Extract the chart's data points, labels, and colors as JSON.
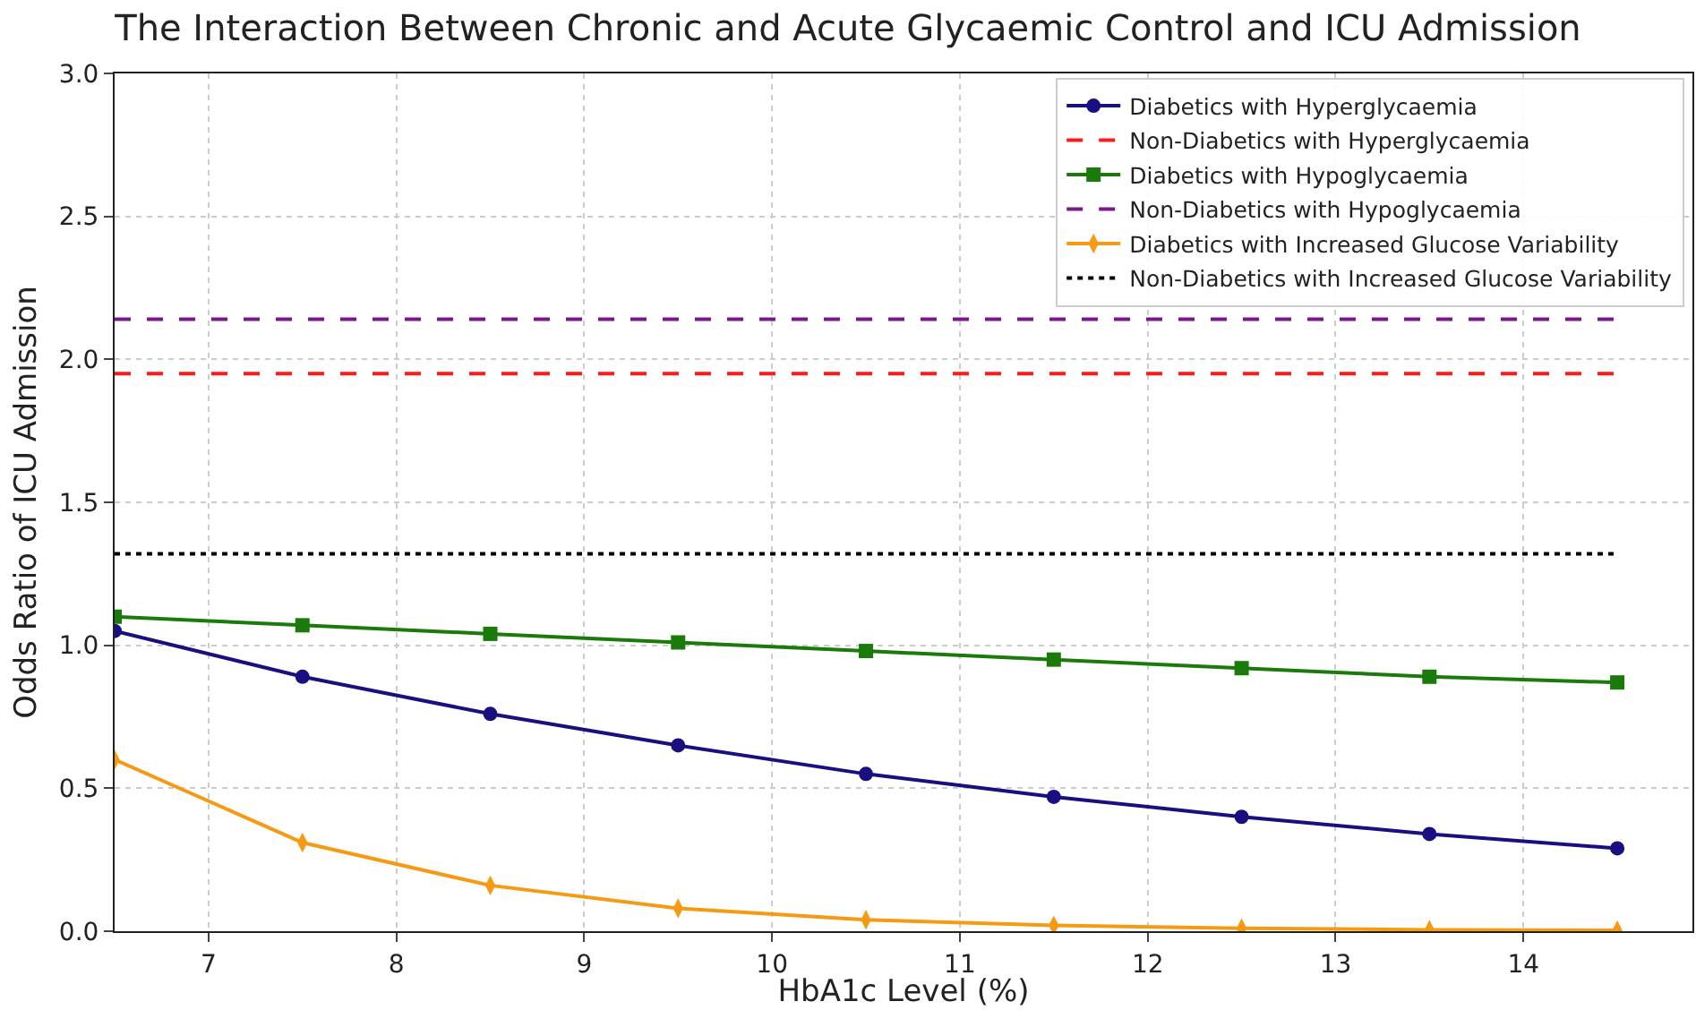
{
  "chart_data": {
    "type": "line",
    "title": "The Interaction Between Chronic and Acute Glycaemic Control and ICU Admission",
    "xlabel": "HbA1c Level (%)",
    "ylabel": "Odds Ratio of ICU Admission",
    "x": [
      6.5,
      7.5,
      8.5,
      9.5,
      10.5,
      11.5,
      12.5,
      13.5,
      14.5
    ],
    "series": [
      {
        "name": "Diabetics with Hyperglycaemia",
        "color": "#1a0f80",
        "marker": "circle",
        "line_style": "solid",
        "values": [
          1.05,
          0.89,
          0.76,
          0.65,
          0.55,
          0.47,
          0.4,
          0.34,
          0.29
        ]
      },
      {
        "name": "Non-Diabetics with Hyperglycaemia",
        "color": "#ff1a1a",
        "marker": "none",
        "line_style": "dashed",
        "values": [
          1.95,
          1.95,
          1.95,
          1.95,
          1.95,
          1.95,
          1.95,
          1.95,
          1.95
        ]
      },
      {
        "name": "Diabetics with Hypoglycaemia",
        "color": "#1a7a0a",
        "marker": "square",
        "line_style": "solid",
        "values": [
          1.1,
          1.07,
          1.04,
          1.01,
          0.98,
          0.95,
          0.92,
          0.89,
          0.87
        ]
      },
      {
        "name": "Non-Diabetics with Hypoglycaemia",
        "color": "#7a1a8a",
        "marker": "none",
        "line_style": "dashed",
        "values": [
          2.14,
          2.14,
          2.14,
          2.14,
          2.14,
          2.14,
          2.14,
          2.14,
          2.14
        ]
      },
      {
        "name": "Diabetics with Increased Glucose Variability",
        "color": "#f59a12",
        "marker": "diamond",
        "line_style": "solid",
        "values": [
          0.6,
          0.31,
          0.16,
          0.08,
          0.04,
          0.02,
          0.01,
          0.005,
          0.003
        ]
      },
      {
        "name": "Non-Diabetics with Increased Glucose Variability",
        "color": "#000000",
        "marker": "none",
        "line_style": "dotted",
        "values": [
          1.32,
          1.32,
          1.32,
          1.32,
          1.32,
          1.32,
          1.32,
          1.32,
          1.32
        ]
      }
    ],
    "xlim": [
      6.5,
      14.9
    ],
    "xticks": [
      7,
      8,
      9,
      10,
      11,
      12,
      13,
      14
    ],
    "ylim": [
      0,
      3
    ],
    "yticks": [
      {
        "value": 0,
        "label": "0.0"
      },
      {
        "value": 0.5,
        "label": "0.5"
      },
      {
        "value": 1,
        "label": "1.0"
      },
      {
        "value": 1.5,
        "label": "1.5"
      },
      {
        "value": 2,
        "label": "2.0"
      },
      {
        "value": 2.5,
        "label": "2.5"
      },
      {
        "value": 3,
        "label": "3.0"
      }
    ],
    "grid": true,
    "legend": "top right"
  }
}
